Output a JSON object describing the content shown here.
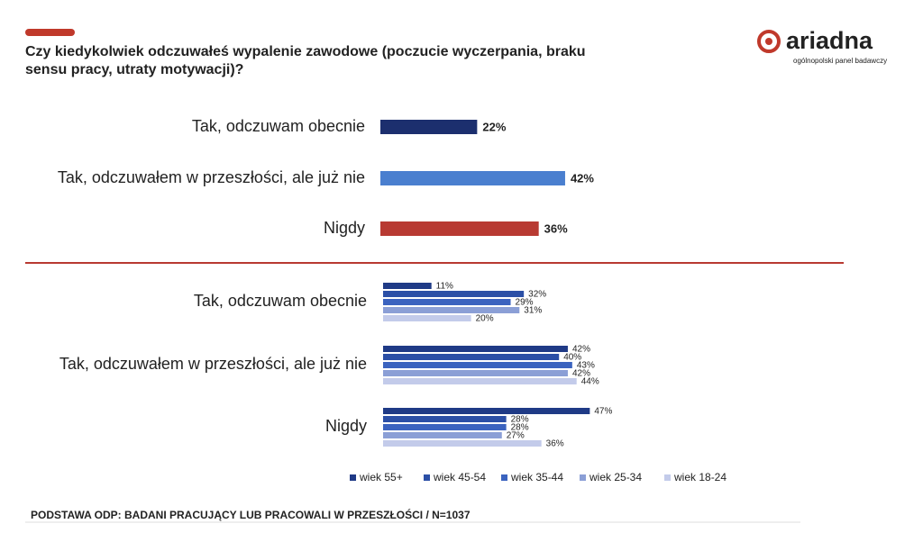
{
  "logo": {
    "name": "ariadna",
    "tagline": "ogólnopolski panel badawczy"
  },
  "footer": "PODSTAWA ODP: BADANI PRACUJĄCY LUB PRACOWALI W PRZESZŁOŚCI / N=1037",
  "chart_data": [
    {
      "type": "bar",
      "orientation": "horizontal",
      "title": "Czy kiedykolwiek odczuwałeś wypalenie zawodowe (poczucie wyczerpania, braku sensu pracy, utraty motywacji)?",
      "categories": [
        "Tak, odczuwam obecnie",
        "Tak, odczuwałem w przeszłości, ale już nie",
        "Nigdy"
      ],
      "values": [
        22,
        42,
        36
      ],
      "value_labels": [
        "22%",
        "42%",
        "36%"
      ],
      "colors": [
        "#1c2f6e",
        "#4a7fcf",
        "#b83a32"
      ]
    },
    {
      "type": "grouped_bar",
      "orientation": "horizontal",
      "categories": [
        "Tak, odczuwam obecnie",
        "Tak, odczuwałem w przeszłości, ale już nie",
        "Nigdy"
      ],
      "legend": "bottom",
      "series": [
        {
          "name": "wiek 55+",
          "color": "#1f3a86",
          "values": [
            11,
            42,
            47
          ],
          "value_labels": [
            "11%",
            "42%",
            "47%"
          ]
        },
        {
          "name": "wiek 45-54",
          "color": "#2b4fa6",
          "values": [
            32,
            40,
            28
          ],
          "value_labels": [
            "32%",
            "40%",
            "28%"
          ]
        },
        {
          "name": "wiek 35-44",
          "color": "#3b63bf",
          "values": [
            29,
            43,
            28
          ],
          "value_labels": [
            "29%",
            "43%",
            "28%"
          ]
        },
        {
          "name": "wiek 25-34",
          "color": "#8b9fd6",
          "values": [
            31,
            42,
            27
          ],
          "value_labels": [
            "31%",
            "42%",
            "27%"
          ]
        },
        {
          "name": "wiek 18-24",
          "color": "#c3cbea",
          "values": [
            20,
            44,
            36
          ],
          "value_labels": [
            "20%",
            "44%",
            "36%"
          ]
        }
      ]
    }
  ]
}
